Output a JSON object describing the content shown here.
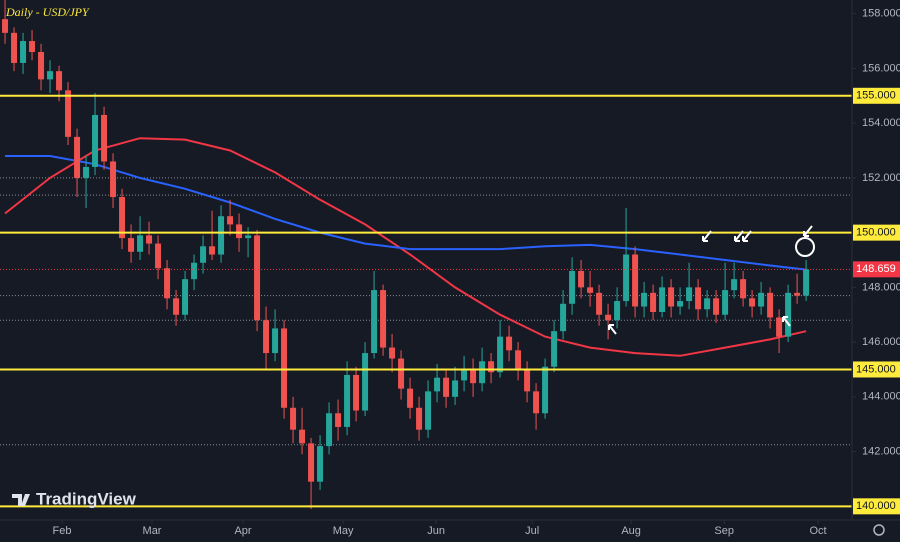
{
  "chart_data": {
    "type": "candlestick",
    "title": "Daily - USD/JPY",
    "watermark": "TradingView",
    "up_color": "#26a69a",
    "down_color": "#ef5350",
    "xlim": [
      -0.56,
      94.1
    ],
    "ylim": [
      139.5,
      158.5
    ],
    "yticks": [
      {
        "value": 158,
        "label": "158.000"
      },
      {
        "value": 156,
        "label": "156.000"
      },
      {
        "value": 154,
        "label": "154.000"
      },
      {
        "value": 152,
        "label": "152.000"
      },
      {
        "value": 148,
        "label": "148.000"
      },
      {
        "value": 146,
        "label": "146.000"
      },
      {
        "value": 144,
        "label": "144.000"
      },
      {
        "value": 142,
        "label": "142.000"
      }
    ],
    "xticks": [
      {
        "value": 6.33,
        "label": "Feb"
      },
      {
        "value": 16.33,
        "label": "Mar"
      },
      {
        "value": 26.44,
        "label": "Apr"
      },
      {
        "value": 37.56,
        "label": "May"
      },
      {
        "value": 47.9,
        "label": "Jun"
      },
      {
        "value": 58.56,
        "label": "Jul"
      },
      {
        "value": 69.56,
        "label": "Aug"
      },
      {
        "value": 79.9,
        "label": "Sep"
      },
      {
        "value": 90.33,
        "label": "Oct"
      }
    ],
    "key_levels": [
      {
        "value": 155,
        "label": "155.000"
      },
      {
        "value": 150,
        "label": "150.000"
      },
      {
        "value": 145,
        "label": "145.000"
      },
      {
        "value": 140,
        "label": "140.000"
      }
    ],
    "key_level_color": "#ffeb3b",
    "dotted_levels": [
      152.0,
      151.37,
      147.7,
      146.8,
      142.25
    ],
    "current_price": {
      "value": 148.659,
      "label": "148.659"
    },
    "current_price_color": "#f23645",
    "candles": [
      [
        157.8,
        158.8,
        156.9,
        157.3
      ],
      [
        157.3,
        157.5,
        155.9,
        156.2
      ],
      [
        156.2,
        157.3,
        155.8,
        157.0
      ],
      [
        157.0,
        157.4,
        156.3,
        156.6
      ],
      [
        156.6,
        156.9,
        155.2,
        155.6
      ],
      [
        155.6,
        156.3,
        155.1,
        155.9
      ],
      [
        155.9,
        156.1,
        154.8,
        155.2
      ],
      [
        155.2,
        155.5,
        153.2,
        153.5
      ],
      [
        153.5,
        153.8,
        151.3,
        152.0
      ],
      [
        152.0,
        152.8,
        150.9,
        152.4
      ],
      [
        152.4,
        155.1,
        152.1,
        154.3
      ],
      [
        154.3,
        154.6,
        152.3,
        152.6
      ],
      [
        152.6,
        152.9,
        150.9,
        151.3
      ],
      [
        151.3,
        151.6,
        149.4,
        149.8
      ],
      [
        149.8,
        150.3,
        148.9,
        149.3
      ],
      [
        149.3,
        150.6,
        149.0,
        149.9
      ],
      [
        149.9,
        150.4,
        149.2,
        149.6
      ],
      [
        149.6,
        149.9,
        148.3,
        148.7
      ],
      [
        148.7,
        149.0,
        147.2,
        147.6
      ],
      [
        147.6,
        147.9,
        146.6,
        147.0
      ],
      [
        147.0,
        148.6,
        146.8,
        148.3
      ],
      [
        148.3,
        149.2,
        147.9,
        148.9
      ],
      [
        148.9,
        149.9,
        148.5,
        149.5
      ],
      [
        149.5,
        150.8,
        149.0,
        149.2
      ],
      [
        149.2,
        151.0,
        148.9,
        150.6
      ],
      [
        150.6,
        151.2,
        149.9,
        150.3
      ],
      [
        150.3,
        150.7,
        149.3,
        149.8
      ],
      [
        149.8,
        150.2,
        149.1,
        149.9
      ],
      [
        149.9,
        150.1,
        146.4,
        146.8
      ],
      [
        146.8,
        147.3,
        145.0,
        145.6
      ],
      [
        145.6,
        147.2,
        145.3,
        146.5
      ],
      [
        146.5,
        146.8,
        143.2,
        143.6
      ],
      [
        143.6,
        144.0,
        142.3,
        142.8
      ],
      [
        142.8,
        143.6,
        141.9,
        142.3
      ],
      [
        142.3,
        142.5,
        139.9,
        140.9
      ],
      [
        140.9,
        142.6,
        140.6,
        142.2
      ],
      [
        142.2,
        143.8,
        141.9,
        143.4
      ],
      [
        143.4,
        143.9,
        142.4,
        142.9
      ],
      [
        142.9,
        145.3,
        142.6,
        144.8
      ],
      [
        144.8,
        145.1,
        143.1,
        143.5
      ],
      [
        143.5,
        146.0,
        143.3,
        145.6
      ],
      [
        145.6,
        148.6,
        145.4,
        147.9
      ],
      [
        147.9,
        148.1,
        145.5,
        145.8
      ],
      [
        145.8,
        146.3,
        144.9,
        145.4
      ],
      [
        145.4,
        145.7,
        143.9,
        144.3
      ],
      [
        144.3,
        144.7,
        143.2,
        143.6
      ],
      [
        143.6,
        144.0,
        142.4,
        142.8
      ],
      [
        142.8,
        144.6,
        142.5,
        144.2
      ],
      [
        144.2,
        145.2,
        143.8,
        144.7
      ],
      [
        144.7,
        145.0,
        143.6,
        144.0
      ],
      [
        144.0,
        145.1,
        143.7,
        144.6
      ],
      [
        144.6,
        145.5,
        144.2,
        145.0
      ],
      [
        145.0,
        145.4,
        144.0,
        144.5
      ],
      [
        144.5,
        145.8,
        144.2,
        145.3
      ],
      [
        145.3,
        145.6,
        144.5,
        144.9
      ],
      [
        144.9,
        146.8,
        144.7,
        146.2
      ],
      [
        146.2,
        146.6,
        145.3,
        145.7
      ],
      [
        145.7,
        146.0,
        144.6,
        145.0
      ],
      [
        145.0,
        145.3,
        143.8,
        144.2
      ],
      [
        144.2,
        144.5,
        142.8,
        143.4
      ],
      [
        143.4,
        145.4,
        143.2,
        145.1
      ],
      [
        145.1,
        146.8,
        144.9,
        146.4
      ],
      [
        146.4,
        147.9,
        146.1,
        147.4
      ],
      [
        147.4,
        149.1,
        147.0,
        148.6
      ],
      [
        148.6,
        149.0,
        147.6,
        148.0
      ],
      [
        148.0,
        148.6,
        147.3,
        147.8
      ],
      [
        147.8,
        148.1,
        146.6,
        147.0
      ],
      [
        147.0,
        147.4,
        146.1,
        146.8
      ],
      [
        146.8,
        148.0,
        146.5,
        147.5
      ],
      [
        147.5,
        150.9,
        147.3,
        149.2
      ],
      [
        149.2,
        149.5,
        146.9,
        147.3
      ],
      [
        147.3,
        148.2,
        146.9,
        147.8
      ],
      [
        147.8,
        148.1,
        146.8,
        147.1
      ],
      [
        147.1,
        148.4,
        146.9,
        148.0
      ],
      [
        148.0,
        148.3,
        146.9,
        147.3
      ],
      [
        147.3,
        148.0,
        147.0,
        147.5
      ],
      [
        147.5,
        148.9,
        147.2,
        148.0
      ],
      [
        148.0,
        148.3,
        146.8,
        147.2
      ],
      [
        147.2,
        147.9,
        146.9,
        147.6
      ],
      [
        147.6,
        147.9,
        146.7,
        147.0
      ],
      [
        147.0,
        148.9,
        146.8,
        147.9
      ],
      [
        147.9,
        148.9,
        147.6,
        148.3
      ],
      [
        148.3,
        148.6,
        147.3,
        147.6
      ],
      [
        147.6,
        147.9,
        146.9,
        147.3
      ],
      [
        147.3,
        148.2,
        147.0,
        147.8
      ],
      [
        147.8,
        148.0,
        146.5,
        146.9
      ],
      [
        146.9,
        147.2,
        145.6,
        146.2
      ],
      [
        146.2,
        148.1,
        146.0,
        147.8
      ],
      [
        147.8,
        148.5,
        147.4,
        147.7
      ],
      [
        147.7,
        149.0,
        147.5,
        148.66
      ]
    ],
    "lines": [
      {
        "color": "#f23645",
        "x": [
          0,
          5,
          10,
          15,
          20,
          25,
          30,
          35,
          40,
          45,
          50,
          55,
          60,
          65,
          70,
          75,
          80,
          85,
          89
        ],
        "values": [
          150.7,
          152.0,
          153.0,
          153.45,
          153.4,
          153.0,
          152.2,
          151.2,
          150.3,
          149.2,
          148.0,
          147.0,
          146.2,
          145.8,
          145.6,
          145.5,
          145.8,
          146.1,
          146.4
        ]
      },
      {
        "color": "#2962ff",
        "x": [
          0,
          5,
          10,
          15,
          20,
          25,
          30,
          35,
          40,
          45,
          50,
          55,
          60,
          65,
          70,
          75,
          80,
          85,
          89
        ],
        "values": [
          152.8,
          152.8,
          152.5,
          152.0,
          151.6,
          151.1,
          150.5,
          150.0,
          149.6,
          149.4,
          149.4,
          149.4,
          149.5,
          149.55,
          149.4,
          149.2,
          149.0,
          148.8,
          148.65
        ]
      }
    ]
  }
}
